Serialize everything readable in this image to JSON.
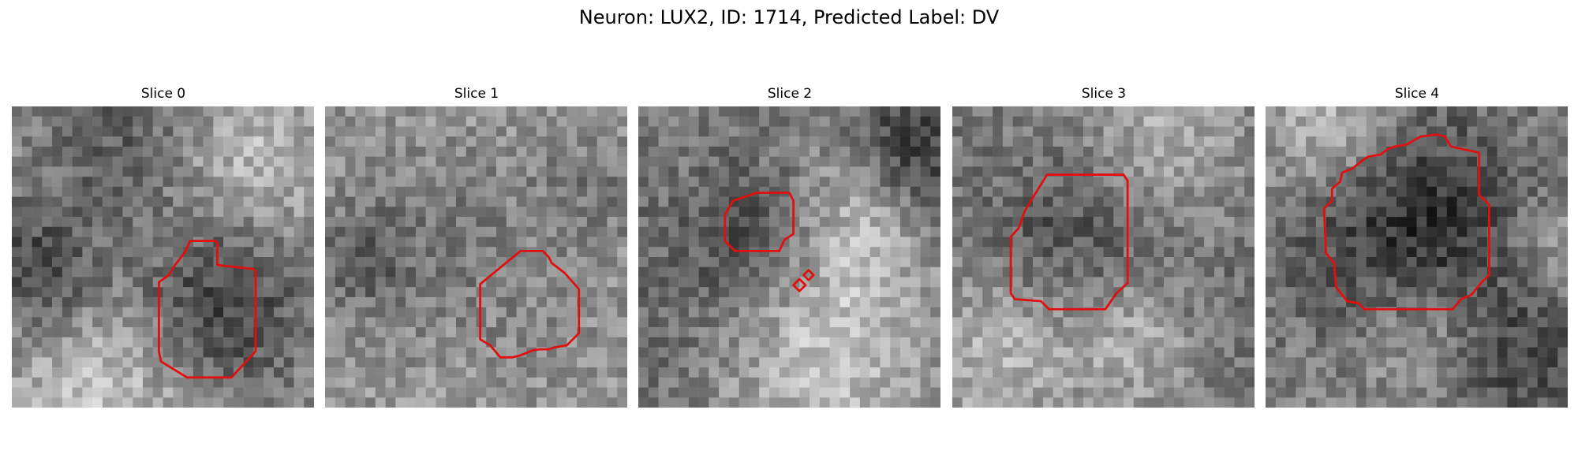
{
  "figure": {
    "title": "Neuron: LUX2, ID: 1714, Predicted Label: DV"
  },
  "outline_color": "#e01010",
  "panels": [
    {
      "label": "Slice 0"
    },
    {
      "label": "Slice 1"
    },
    {
      "label": "Slice 2"
    },
    {
      "label": "Slice 3"
    },
    {
      "label": "Slice 4"
    }
  ]
}
